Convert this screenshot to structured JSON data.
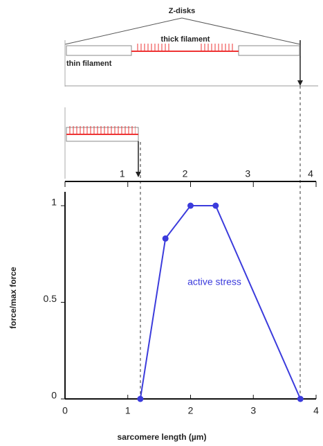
{
  "chart_data": {
    "type": "line",
    "xlabel": "sarcomere length (µm)",
    "ylabel": "force/max force",
    "annotations": [
      "active stress",
      "Z-disks",
      "thick filament",
      "thin filament"
    ],
    "x": [
      1.2,
      1.6,
      2.0,
      2.4,
      3.75
    ],
    "series": [
      {
        "name": "active stress",
        "color": "#3b3bdc",
        "values": [
          0,
          0.83,
          1,
          1,
          0
        ]
      }
    ],
    "xlim": [
      0,
      4
    ],
    "xticks": [
      0,
      1,
      2,
      3,
      4
    ],
    "x2ticks": [
      1,
      2,
      3,
      4
    ],
    "ylim": [
      0,
      1
    ],
    "yticks": [
      0,
      0.5,
      1
    ]
  }
}
